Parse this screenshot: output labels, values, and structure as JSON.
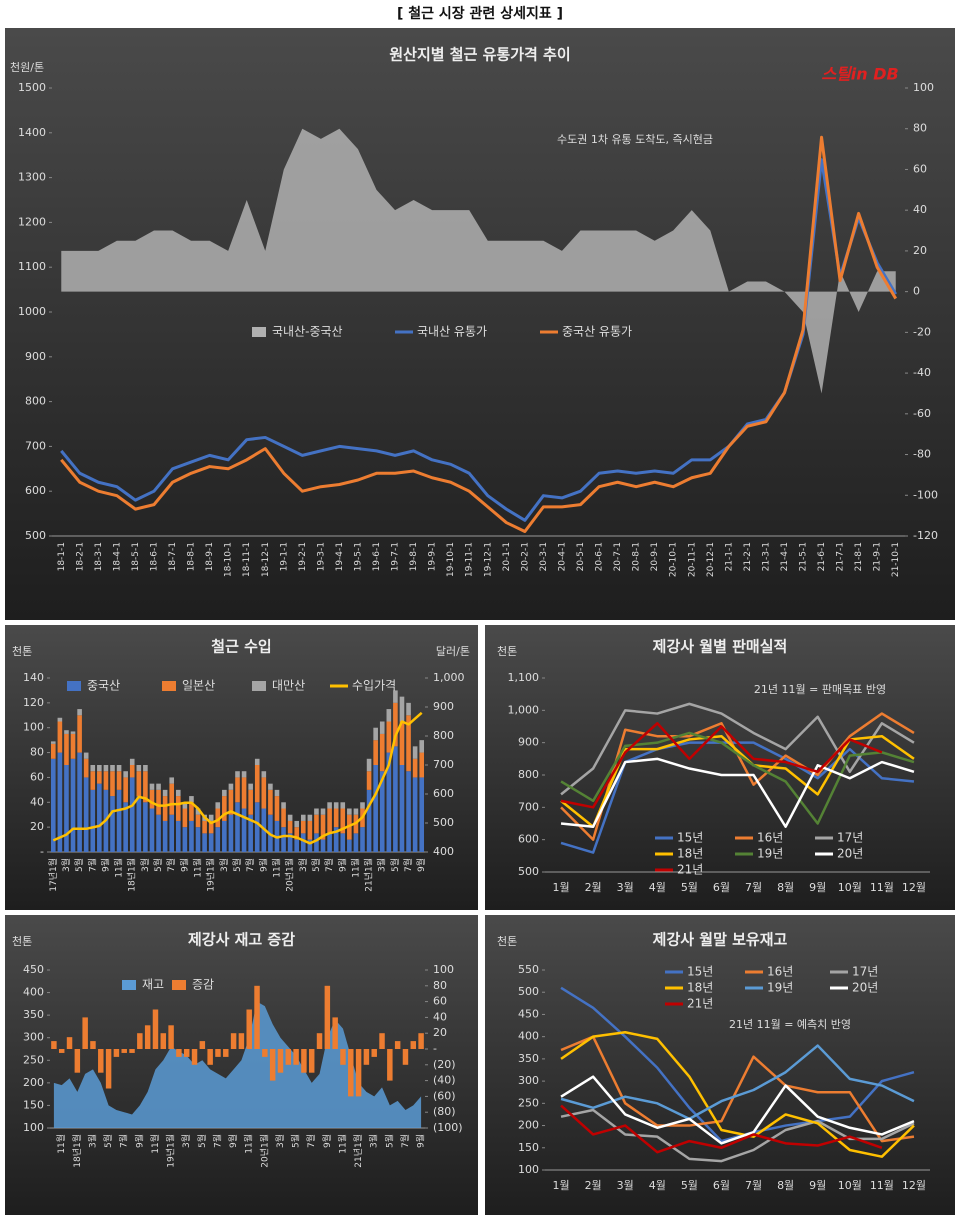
{
  "title": "[ 철근 시장 관련 상세지표 ]",
  "chart_data": [
    {
      "type": "combo",
      "title": "원산지별 철근 유통가격 추이",
      "ylabel": "천원/톤",
      "annotation": "수도권 1차 유통 도착도, 즉시현금",
      "logo": "스틸in DB",
      "categories": [
        "18-1-1",
        "18-2-1",
        "18-3-1",
        "18-4-1",
        "18-5-1",
        "18-6-1",
        "18-7-1",
        "18-8-1",
        "18-9-1",
        "18-10-1",
        "18-11-1",
        "18-12-1",
        "19-1-1",
        "19-2-1",
        "19-3-1",
        "19-4-1",
        "19-5-1",
        "19-6-1",
        "19-7-1",
        "19-8-1",
        "19-9-1",
        "19-10-1",
        "19-11-1",
        "19-12-1",
        "20-1-1",
        "20-2-1",
        "20-3-1",
        "20-4-1",
        "20-5-1",
        "20-6-1",
        "20-7-1",
        "20-8-1",
        "20-9-1",
        "20-10-1",
        "20-11-1",
        "20-12-1",
        "21-1-1",
        "21-2-1",
        "21-3-1",
        "21-4-1",
        "21-5-1",
        "21-6-1",
        "21-7-1",
        "21-8-1",
        "21-9-1",
        "21-10-1"
      ],
      "series": [
        {
          "name": "국내산-중국산",
          "kind": "area",
          "axis": "y2",
          "color": "#b0b0b0",
          "values": [
            20,
            20,
            20,
            25,
            25,
            30,
            30,
            25,
            25,
            20,
            45,
            20,
            60,
            80,
            75,
            80,
            70,
            50,
            40,
            45,
            40,
            40,
            40,
            25,
            25,
            25,
            25,
            20,
            30,
            30,
            30,
            30,
            25,
            30,
            40,
            30,
            0,
            5,
            5,
            0,
            -10,
            -50,
            10,
            -10,
            10,
            10
          ]
        },
        {
          "name": "국내산 유통가",
          "kind": "line",
          "color": "#4472c4",
          "values": [
            690,
            640,
            620,
            610,
            580,
            600,
            650,
            665,
            680,
            670,
            715,
            720,
            700,
            680,
            690,
            700,
            695,
            690,
            680,
            690,
            670,
            660,
            640,
            590,
            560,
            535,
            590,
            585,
            600,
            640,
            645,
            640,
            645,
            640,
            670,
            670,
            700,
            750,
            760,
            820,
            950,
            1340,
            1080,
            1210,
            1110,
            1040
          ]
        },
        {
          "name": "중국산 유통가",
          "kind": "line",
          "color": "#ed7d31",
          "values": [
            670,
            620,
            600,
            590,
            560,
            570,
            620,
            640,
            655,
            650,
            670,
            695,
            640,
            600,
            610,
            615,
            625,
            640,
            640,
            645,
            630,
            620,
            600,
            565,
            530,
            510,
            565,
            565,
            570,
            610,
            620,
            610,
            620,
            610,
            630,
            640,
            700,
            745,
            755,
            820,
            960,
            1390,
            1070,
            1220,
            1100,
            1030
          ]
        }
      ],
      "ylim": [
        500,
        1500
      ],
      "yticks": [
        500,
        600,
        700,
        800,
        900,
        1000,
        1100,
        1200,
        1300,
        1400,
        1500
      ],
      "y2lim": [
        -120,
        100
      ],
      "y2ticks": [
        -120,
        -100,
        -80,
        -60,
        -40,
        -20,
        0,
        20,
        40,
        60,
        80,
        100
      ]
    },
    {
      "type": "combo",
      "title": "철근 수입",
      "ylabel": "천톤",
      "y2label": "달러/톤",
      "categories": [
        "17년1월",
        null,
        "3월",
        null,
        "5월",
        null,
        "7월",
        null,
        "9월",
        null,
        "11월",
        null,
        "18년1월",
        null,
        "3월",
        null,
        "5월",
        null,
        "7월",
        null,
        "9월",
        null,
        "11월",
        null,
        "19년1월",
        null,
        "3월",
        null,
        "5월",
        null,
        "7월",
        null,
        "9월",
        null,
        "11월",
        null,
        "20년1월",
        null,
        "3월",
        null,
        "5월",
        null,
        "7월",
        null,
        "9월",
        null,
        "11월",
        null,
        "21년1월",
        null,
        "3월",
        null,
        "5월",
        null,
        "7월",
        null,
        "9월"
      ],
      "series": [
        {
          "name": "중국산",
          "kind": "bar",
          "color": "#4472c4",
          "values": [
            75,
            80,
            70,
            75,
            80,
            60,
            50,
            55,
            50,
            45,
            50,
            40,
            60,
            45,
            40,
            35,
            30,
            25,
            30,
            25,
            20,
            25,
            20,
            15,
            15,
            20,
            25,
            30,
            40,
            35,
            30,
            40,
            35,
            30,
            25,
            20,
            15,
            10,
            15,
            10,
            15,
            10,
            15,
            20,
            15,
            10,
            15,
            20,
            50,
            70,
            65,
            80,
            85,
            70,
            65,
            60,
            60
          ]
        },
        {
          "name": "일본산",
          "kind": "bar",
          "color": "#ed7d31",
          "values": [
            12,
            25,
            25,
            20,
            30,
            15,
            15,
            10,
            15,
            20,
            15,
            20,
            10,
            20,
            25,
            15,
            20,
            20,
            25,
            20,
            15,
            15,
            10,
            10,
            10,
            15,
            20,
            20,
            20,
            25,
            20,
            30,
            25,
            20,
            20,
            15,
            10,
            10,
            10,
            15,
            15,
            20,
            20,
            15,
            20,
            20,
            15,
            15,
            15,
            20,
            30,
            25,
            35,
            35,
            45,
            15,
            20
          ]
        },
        {
          "name": "대만산",
          "kind": "bar",
          "color": "#a5a5a5",
          "values": [
            2,
            3,
            3,
            2,
            5,
            5,
            5,
            5,
            5,
            5,
            5,
            5,
            5,
            5,
            5,
            5,
            5,
            5,
            5,
            5,
            5,
            5,
            5,
            5,
            5,
            5,
            5,
            5,
            5,
            5,
            5,
            5,
            5,
            5,
            5,
            5,
            5,
            5,
            5,
            5,
            5,
            5,
            5,
            5,
            5,
            5,
            5,
            5,
            10,
            10,
            10,
            10,
            10,
            20,
            10,
            10,
            10
          ]
        },
        {
          "name": "수입가격",
          "kind": "line",
          "axis": "y2",
          "color": "#ffc000",
          "values": [
            440,
            450,
            460,
            480,
            480,
            480,
            485,
            490,
            510,
            540,
            545,
            550,
            560,
            590,
            585,
            570,
            560,
            560,
            565,
            565,
            570,
            570,
            550,
            520,
            500,
            510,
            530,
            540,
            530,
            520,
            510,
            500,
            480,
            460,
            450,
            455,
            455,
            450,
            440,
            430,
            440,
            455,
            465,
            470,
            480,
            490,
            500,
            520,
            560,
            600,
            650,
            700,
            800,
            850,
            840,
            860,
            880
          ]
        }
      ],
      "ylim": [
        0,
        140
      ],
      "yticks": [
        {
          "value": 0,
          "label": "-"
        },
        20,
        40,
        60,
        80,
        100,
        120,
        140
      ],
      "y2lim": [
        400,
        1000
      ],
      "y2ticks": [
        400,
        500,
        600,
        700,
        800,
        900,
        {
          "value": 1000,
          "label": "1,000"
        }
      ]
    },
    {
      "type": "line",
      "title": "제강사 월별 판매실적",
      "ylabel": "천톤",
      "annotation": "21년 11월 = 판매목표 반영",
      "categories": [
        "1월",
        "2월",
        "3월",
        "4월",
        "5월",
        "6월",
        "7월",
        "8월",
        "9월",
        "10월",
        "11월",
        "12월"
      ],
      "series": [
        {
          "name": "15년",
          "kind": "line",
          "color": "#4472c4",
          "values": [
            590,
            560,
            840,
            880,
            900,
            900,
            900,
            850,
            790,
            880,
            790,
            780
          ]
        },
        {
          "name": "16년",
          "kind": "line",
          "color": "#ed7d31",
          "values": [
            700,
            600,
            940,
            920,
            920,
            960,
            770,
            860,
            800,
            920,
            990,
            930
          ]
        },
        {
          "name": "17년",
          "kind": "line",
          "color": "#a5a5a5",
          "values": [
            740,
            820,
            1000,
            990,
            1020,
            990,
            930,
            880,
            980,
            810,
            960,
            900
          ]
        },
        {
          "name": "18년",
          "kind": "line",
          "color": "#ffc000",
          "values": [
            720,
            640,
            880,
            880,
            910,
            920,
            830,
            820,
            740,
            910,
            920,
            850
          ]
        },
        {
          "name": "19년",
          "kind": "line",
          "color": "#548235",
          "values": [
            780,
            720,
            890,
            900,
            930,
            900,
            830,
            780,
            650,
            860,
            870,
            840
          ]
        },
        {
          "name": "20년",
          "kind": "line",
          "color": "#ffffff",
          "values": [
            650,
            640,
            840,
            850,
            820,
            800,
            800,
            640,
            830,
            790,
            840,
            810
          ]
        },
        {
          "name": "21년",
          "kind": "line",
          "color": "#c00000",
          "values": [
            720,
            700,
            870,
            960,
            850,
            950,
            850,
            840,
            810,
            910,
            870,
            null
          ]
        }
      ],
      "ylim": [
        500,
        1100
      ],
      "yticks": [
        500,
        600,
        700,
        800,
        900,
        {
          "value": 1000,
          "label": "1,000"
        },
        {
          "value": 1100,
          "label": "1,100"
        }
      ]
    },
    {
      "type": "combo",
      "title": "제강사 재고 증감",
      "ylabel": "천톤",
      "categories": [
        null,
        "11월",
        null,
        "18년1월",
        null,
        "3월",
        null,
        "5월",
        null,
        "7월",
        null,
        "9월",
        null,
        "11월",
        null,
        "19년1월",
        null,
        "3월",
        null,
        "5월",
        null,
        "7월",
        null,
        "9월",
        null,
        "11월",
        null,
        "20년1월",
        null,
        "3월",
        null,
        "5월",
        null,
        "7월",
        null,
        "9월",
        null,
        "11월",
        null,
        "21년1월",
        null,
        "3월",
        null,
        "5월",
        null,
        "7월",
        null,
        "9월"
      ],
      "series": [
        {
          "name": "재고",
          "kind": "area",
          "color": "#5b9bd5",
          "values": [
            200,
            195,
            210,
            180,
            220,
            230,
            200,
            150,
            140,
            135,
            130,
            150,
            180,
            230,
            250,
            280,
            270,
            260,
            240,
            250,
            230,
            220,
            210,
            230,
            250,
            300,
            380,
            370,
            330,
            300,
            280,
            260,
            230,
            200,
            220,
            300,
            340,
            320,
            260,
            200,
            180,
            170,
            190,
            150,
            160,
            140,
            150,
            170
          ]
        },
        {
          "name": "증감",
          "kind": "bar",
          "axis": "y2",
          "color": "#ed7d31",
          "values": [
            10,
            -5,
            15,
            -30,
            40,
            10,
            -30,
            -50,
            -10,
            -5,
            -5,
            20,
            30,
            50,
            20,
            30,
            -10,
            -10,
            -20,
            10,
            -20,
            -10,
            -10,
            20,
            20,
            50,
            80,
            -10,
            -40,
            -30,
            -20,
            -20,
            -30,
            -30,
            20,
            80,
            40,
            -20,
            -60,
            -60,
            -20,
            -10,
            20,
            -40,
            10,
            -20,
            10,
            20
          ]
        }
      ],
      "ylim": [
        100,
        450
      ],
      "yticks": [
        100,
        150,
        200,
        250,
        300,
        350,
        400,
        450
      ],
      "y2lim": [
        -100,
        100
      ],
      "y2ticks": [
        {
          "value": -100,
          "label": "(100)"
        },
        {
          "value": -80,
          "label": "(80)"
        },
        {
          "value": -60,
          "label": "(60)"
        },
        {
          "value": -40,
          "label": "(40)"
        },
        {
          "value": -20,
          "label": "(20)"
        },
        {
          "value": 0,
          "label": "-"
        },
        20,
        40,
        60,
        80,
        100
      ]
    },
    {
      "type": "line",
      "title": "제강사 월말 보유재고",
      "ylabel": "천톤",
      "annotation": "21년 11월 = 예측치 반영",
      "categories": [
        "1월",
        "2월",
        "3월",
        "4월",
        "5월",
        "6월",
        "7월",
        "8월",
        "9월",
        "10월",
        "11월",
        "12월"
      ],
      "series": [
        {
          "name": "15년",
          "kind": "line",
          "color": "#4472c4",
          "values": [
            510,
            465,
            400,
            330,
            240,
            165,
            185,
            200,
            210,
            220,
            300,
            320
          ]
        },
        {
          "name": "16년",
          "kind": "line",
          "color": "#ed7d31",
          "values": [
            370,
            400,
            250,
            200,
            200,
            210,
            355,
            290,
            275,
            275,
            165,
            175
          ]
        },
        {
          "name": "17년",
          "kind": "line",
          "color": "#a5a5a5",
          "values": [
            220,
            235,
            180,
            175,
            125,
            120,
            145,
            190,
            210,
            170,
            170,
            205
          ]
        },
        {
          "name": "18년",
          "kind": "line",
          "color": "#ffc000",
          "values": [
            350,
            400,
            410,
            395,
            310,
            190,
            175,
            225,
            205,
            145,
            130,
            200
          ]
        },
        {
          "name": "19년",
          "kind": "line",
          "color": "#5b9bd5",
          "values": [
            260,
            240,
            265,
            250,
            215,
            255,
            280,
            320,
            380,
            305,
            290,
            255
          ]
        },
        {
          "name": "20년",
          "kind": "line",
          "color": "#ffffff",
          "values": [
            265,
            310,
            225,
            195,
            215,
            160,
            185,
            290,
            220,
            195,
            180,
            210
          ]
        },
        {
          "name": "21년",
          "kind": "line",
          "color": "#c00000",
          "values": [
            245,
            180,
            200,
            140,
            165,
            150,
            180,
            160,
            155,
            175,
            150,
            null
          ]
        }
      ],
      "ylim": [
        100,
        550
      ],
      "yticks": [
        100,
        150,
        200,
        250,
        300,
        350,
        400,
        450,
        500,
        550
      ]
    }
  ]
}
